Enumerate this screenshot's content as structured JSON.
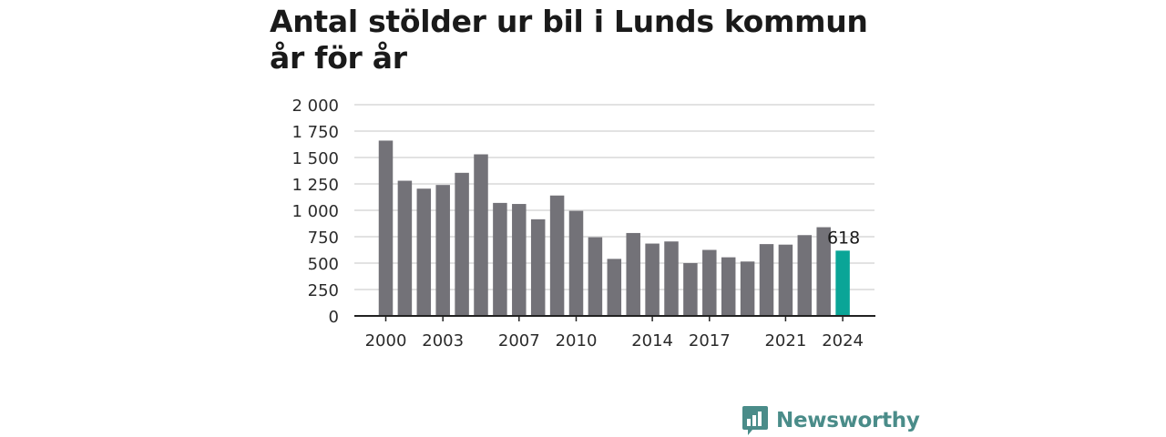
{
  "colors": {
    "bar": "#737278",
    "highlight": "#0aa597",
    "grid": "#d9d9d9",
    "axis": "#222222",
    "brand": "#4a8c89"
  },
  "brand": {
    "name": "Newsworthy",
    "icon": "newsworthy-logo-icon"
  },
  "chart_data": {
    "type": "bar",
    "title": "Antal stölder ur bil i Lunds kommun år för år",
    "xlabel": "",
    "ylabel": "",
    "x": [
      2000,
      2001,
      2002,
      2003,
      2004,
      2005,
      2006,
      2007,
      2008,
      2009,
      2010,
      2011,
      2012,
      2013,
      2014,
      2015,
      2016,
      2017,
      2018,
      2019,
      2020,
      2021,
      2022,
      2023,
      2024
    ],
    "values": [
      1660,
      1280,
      1205,
      1240,
      1355,
      1530,
      1070,
      1060,
      915,
      1140,
      995,
      745,
      540,
      785,
      685,
      705,
      500,
      625,
      555,
      515,
      680,
      675,
      765,
      840,
      618
    ],
    "highlight_index": 24,
    "highlight_label": "618",
    "x_tick_labels": [
      "2000",
      "2003",
      "2007",
      "2010",
      "2014",
      "2017",
      "2021",
      "2024"
    ],
    "y_ticks": [
      0,
      250,
      500,
      750,
      1000,
      1250,
      1500,
      1750,
      2000
    ],
    "y_tick_labels": [
      "0",
      "250",
      "500",
      "750",
      "1 000",
      "1 250",
      "1 500",
      "1 750",
      "2 000"
    ],
    "ylim": [
      0,
      2000
    ],
    "grid": true,
    "legend": "none"
  }
}
